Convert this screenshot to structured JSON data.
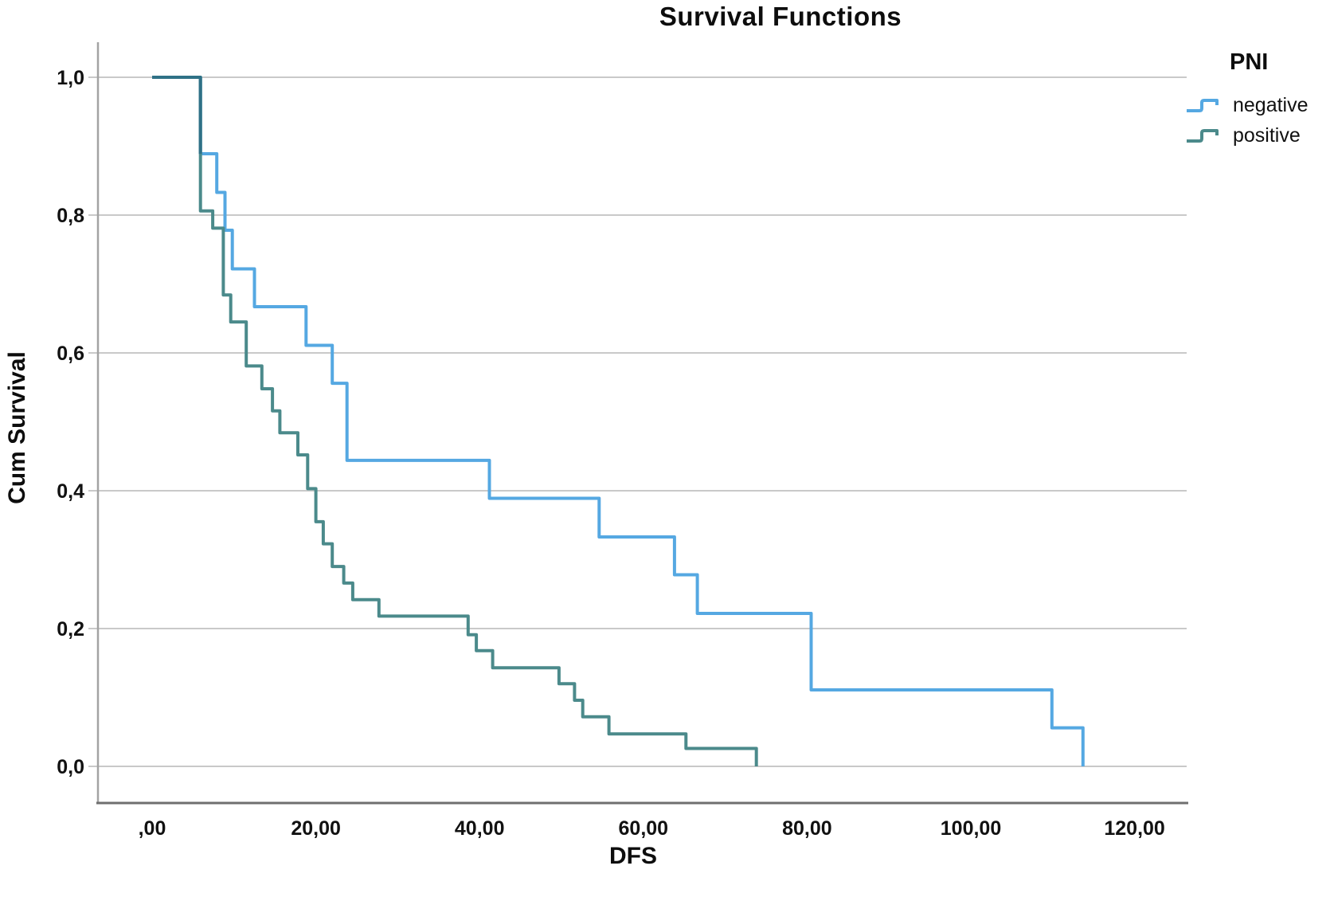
{
  "title": "Survival Functions",
  "x_axis": {
    "title": "DFS",
    "ticks": [
      ",00",
      "20,00",
      "40,00",
      "60,00",
      "80,00",
      "100,00",
      "120,00"
    ],
    "tick_values": [
      0,
      20,
      40,
      60,
      80,
      100,
      120
    ],
    "range": [
      0,
      126
    ]
  },
  "y_axis": {
    "title": "Cum Survival",
    "ticks": [
      "0,0",
      "0,2",
      "0,4",
      "0,6",
      "0,8",
      "1,0"
    ],
    "tick_values": [
      0,
      0.2,
      0.4,
      0.6,
      0.8,
      1.0
    ],
    "range": [
      0,
      1
    ]
  },
  "legend": {
    "title": "PNI",
    "items": [
      {
        "label": "negative",
        "color": "#55a8e2"
      },
      {
        "label": "positive",
        "color": "#4b8a8b"
      }
    ]
  },
  "colors": {
    "negative_line": "#55a8e2",
    "positive_line": "#4b8a8b",
    "overlap_line": "#2f7186",
    "grid": "#c9c9c9",
    "axis_left": "#a3a3a3",
    "axis_bottom": "#6f6f6f",
    "text": "#111111"
  },
  "chart_data": {
    "type": "line",
    "subtype": "kaplan-meier-step-survival",
    "title": "Survival Functions",
    "xlabel": "DFS",
    "ylabel": "Cum Survival",
    "xlim": [
      0,
      126
    ],
    "ylim": [
      0,
      1.0
    ],
    "grid": "horizontal",
    "legend_title": "PNI",
    "legend_position": "top-right",
    "series": [
      {
        "name": "negative",
        "color": "#55a8e2",
        "steps": [
          [
            0,
            1.0
          ],
          [
            5.9,
            0.889
          ],
          [
            7.9,
            0.833
          ],
          [
            8.9,
            0.778
          ],
          [
            9.8,
            0.722
          ],
          [
            12.5,
            0.667
          ],
          [
            18.8,
            0.611
          ],
          [
            22.0,
            0.556
          ],
          [
            23.8,
            0.444
          ],
          [
            41.2,
            0.389
          ],
          [
            54.6,
            0.333
          ],
          [
            63.8,
            0.278
          ],
          [
            66.6,
            0.222
          ],
          [
            80.5,
            0.111
          ],
          [
            109.9,
            0.056
          ],
          [
            113.7,
            0.0
          ]
        ]
      },
      {
        "name": "positive",
        "color": "#4b8a8b",
        "steps": [
          [
            0,
            1.0
          ],
          [
            5.9,
            0.806
          ],
          [
            7.4,
            0.781
          ],
          [
            8.7,
            0.684
          ],
          [
            9.6,
            0.645
          ],
          [
            11.5,
            0.581
          ],
          [
            13.4,
            0.548
          ],
          [
            14.7,
            0.516
          ],
          [
            15.6,
            0.484
          ],
          [
            17.8,
            0.452
          ],
          [
            19.0,
            0.403
          ],
          [
            20.0,
            0.355
          ],
          [
            20.9,
            0.323
          ],
          [
            22.0,
            0.29
          ],
          [
            23.4,
            0.266
          ],
          [
            24.5,
            0.242
          ],
          [
            27.7,
            0.218
          ],
          [
            38.6,
            0.191
          ],
          [
            39.6,
            0.168
          ],
          [
            41.6,
            0.143
          ],
          [
            49.7,
            0.12
          ],
          [
            51.6,
            0.096
          ],
          [
            52.6,
            0.072
          ],
          [
            55.8,
            0.047
          ],
          [
            65.2,
            0.026
          ],
          [
            73.8,
            0.0
          ]
        ]
      }
    ]
  }
}
